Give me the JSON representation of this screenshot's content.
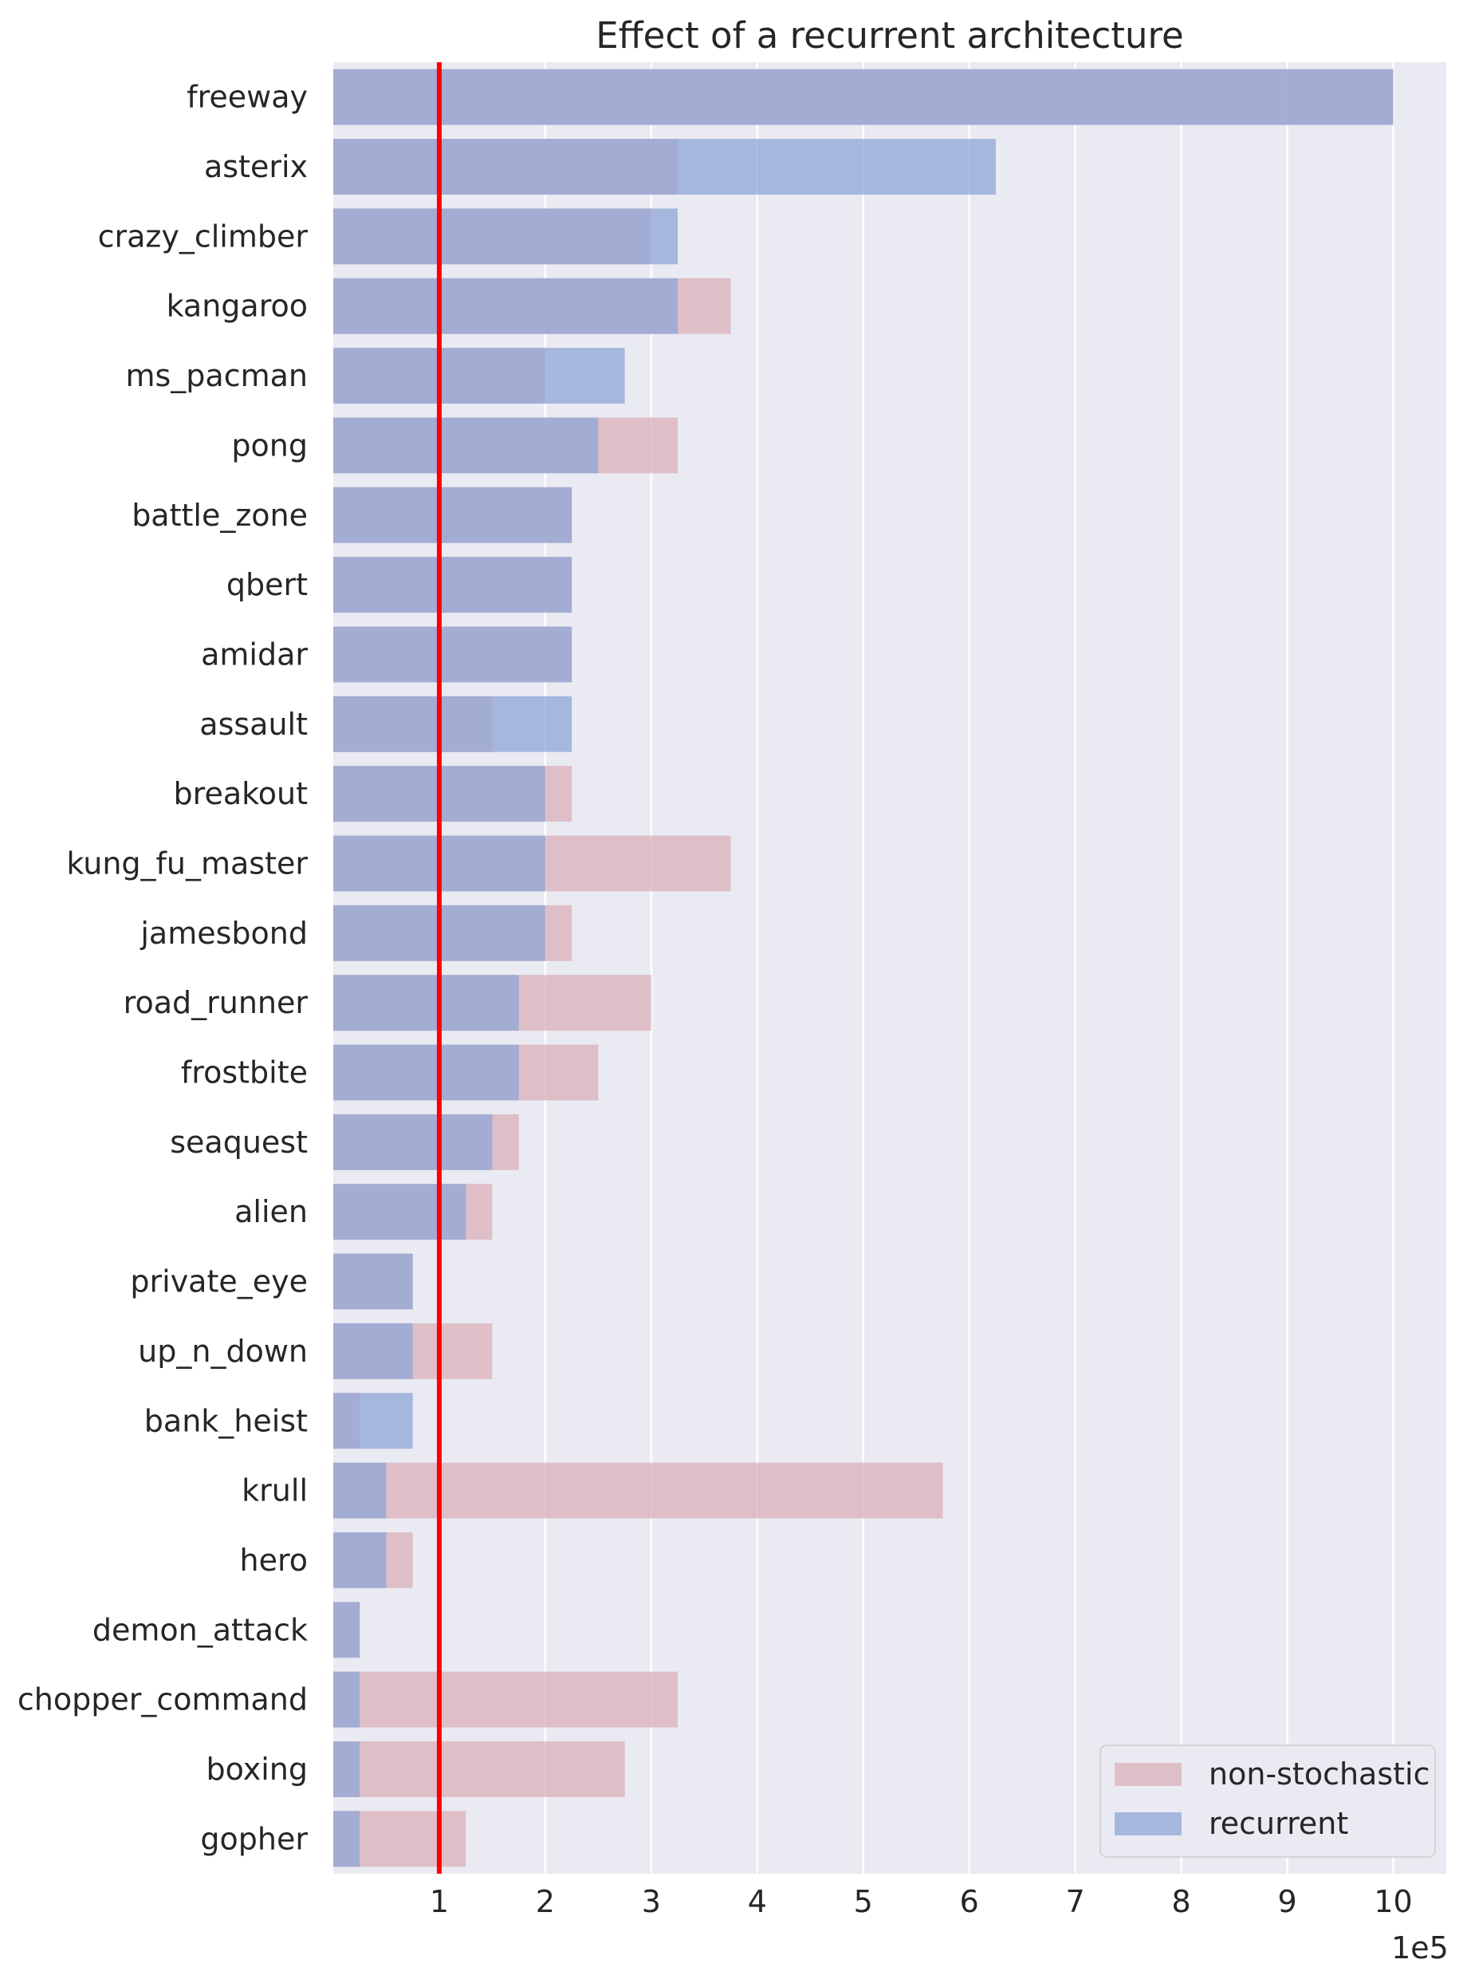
{
  "chart_data": {
    "type": "bar",
    "orientation": "horizontal",
    "title": "Effect of a recurrent architecture",
    "xlabel": "",
    "ylabel": "",
    "x_scale_label": "1e5",
    "xlim": [
      0,
      10.5
    ],
    "xticks": [
      1,
      2,
      3,
      4,
      5,
      6,
      7,
      8,
      9,
      10
    ],
    "grid": true,
    "legend": "bottom-right",
    "reference_line": {
      "x": 1,
      "color": "#ff0000"
    },
    "categories": [
      "freeway",
      "asterix",
      "crazy_climber",
      "kangaroo",
      "ms_pacman",
      "pong",
      "battle_zone",
      "qbert",
      "amidar",
      "assault",
      "breakout",
      "kung_fu_master",
      "jamesbond",
      "road_runner",
      "frostbite",
      "seaquest",
      "alien",
      "private_eye",
      "up_n_down",
      "bank_heist",
      "krull",
      "hero",
      "demon_attack",
      "chopper_command",
      "boxing",
      "gopher"
    ],
    "series": [
      {
        "name": "non-stochastic",
        "color": "#d9b0b9",
        "values": [
          10,
          3.25,
          3.0,
          3.75,
          2.0,
          3.25,
          2.25,
          2.25,
          2.25,
          1.5,
          2.25,
          3.75,
          2.25,
          3.0,
          2.5,
          1.75,
          1.5,
          0.75,
          1.5,
          0.25,
          5.75,
          0.75,
          0.25,
          3.25,
          2.75,
          1.25
        ]
      },
      {
        "name": "recurrent",
        "color": "#8fa6d6",
        "values": [
          10,
          6.25,
          3.25,
          3.25,
          2.75,
          2.5,
          2.25,
          2.25,
          2.25,
          2.25,
          2.0,
          2.0,
          2.0,
          1.75,
          1.75,
          1.5,
          1.25,
          0.75,
          0.75,
          0.75,
          0.5,
          0.5,
          0.25,
          0.25,
          0.25,
          0.25
        ]
      }
    ],
    "colors": {
      "background": "#eaeaf2",
      "grid": "#ffffff",
      "overlap": "#9b9ec2"
    }
  }
}
